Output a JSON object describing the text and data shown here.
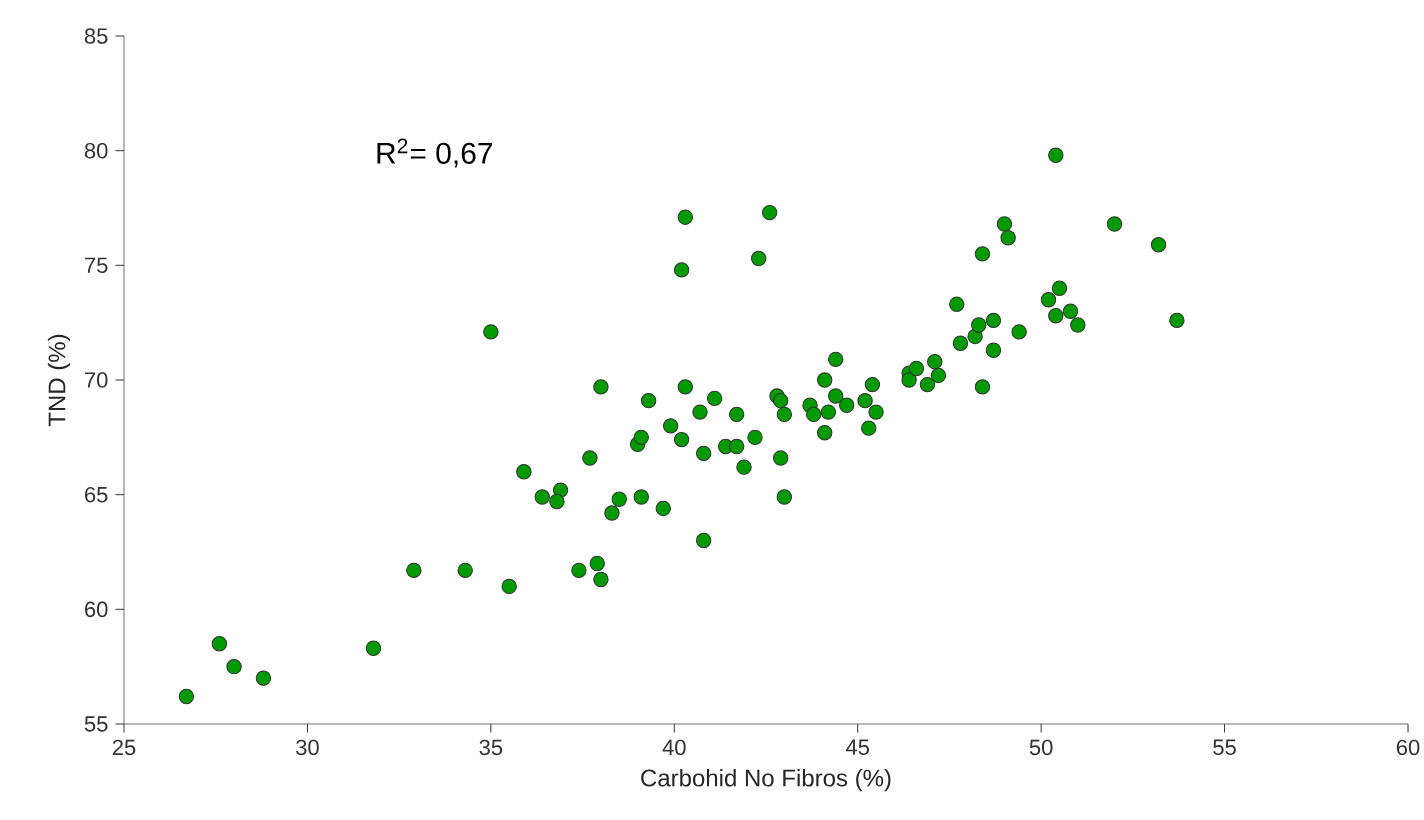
{
  "chart_data": {
    "type": "scatter",
    "xlabel": "Carbohid No Fibros (%)",
    "ylabel": "TND (%)",
    "annotations": [
      "R$^{2}$= 0,67"
    ],
    "xlim": [
      25,
      60
    ],
    "ylim": [
      55,
      85
    ],
    "xticks": [
      25,
      30,
      35,
      40,
      45,
      50,
      55,
      60
    ],
    "yticks": [
      55,
      60,
      65,
      70,
      75,
      80,
      85
    ],
    "grid": false,
    "marker": "circle",
    "series": [
      {
        "color": "#009900",
        "x": [
          26.7,
          27.6,
          28.0,
          28.8,
          31.8,
          32.9,
          34.3,
          35.0,
          35.5,
          35.9,
          36.4,
          36.9,
          36.8,
          37.4,
          37.7,
          37.9,
          38.0,
          38.0,
          38.5,
          38.3,
          39.1,
          39.7,
          39.0,
          39.1,
          39.3,
          39.9,
          40.2,
          40.3,
          40.2,
          40.3,
          40.8,
          40.8,
          40.7,
          41.1,
          41.4,
          41.7,
          41.7,
          41.9,
          42.2,
          42.3,
          42.6,
          42.9,
          43.0,
          42.8,
          42.9,
          43.0,
          43.7,
          43.8,
          44.1,
          44.4,
          44.4,
          44.2,
          44.1,
          44.7,
          45.4,
          45.2,
          45.5,
          45.3,
          46.4,
          46.4,
          46.6,
          47.1,
          47.2,
          46.9,
          47.7,
          47.8,
          48.2,
          48.3,
          48.7,
          48.7,
          48.4,
          48.4,
          49.4,
          49.0,
          49.1,
          50.4,
          50.2,
          50.5,
          50.4,
          50.8,
          51.0,
          52.0,
          53.2,
          53.7
        ],
        "values": [
          56.2,
          58.5,
          57.5,
          57.0,
          58.3,
          61.7,
          61.7,
          72.1,
          61.0,
          66.0,
          64.9,
          65.2,
          64.7,
          61.7,
          66.6,
          62.0,
          61.3,
          69.7,
          64.8,
          64.2,
          64.9,
          64.4,
          67.2,
          67.5,
          69.1,
          68.0,
          67.4,
          69.7,
          74.8,
          77.1,
          66.8,
          63.0,
          68.6,
          69.2,
          67.1,
          67.1,
          68.5,
          66.2,
          67.5,
          75.3,
          77.3,
          66.6,
          64.9,
          69.3,
          69.1,
          68.5,
          68.9,
          68.5,
          70.0,
          70.9,
          69.3,
          68.6,
          67.7,
          68.9,
          69.8,
          69.1,
          68.6,
          67.9,
          70.3,
          70.0,
          70.5,
          70.8,
          70.2,
          69.8,
          73.3,
          71.6,
          71.9,
          72.4,
          72.6,
          71.3,
          69.7,
          75.5,
          72.1,
          76.8,
          76.2,
          79.8,
          73.5,
          74.0,
          72.8,
          73.0,
          72.4,
          76.8,
          75.9,
          72.6
        ]
      }
    ]
  }
}
